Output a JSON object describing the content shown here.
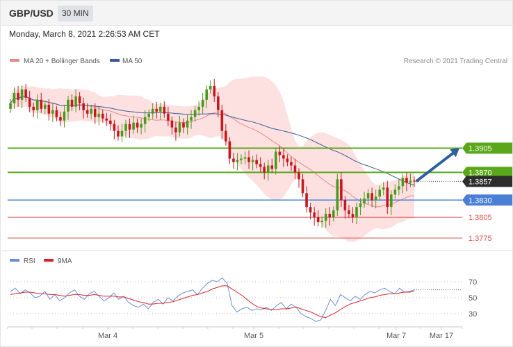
{
  "header": {
    "symbol": "GBP/USD",
    "timeframe": "30 MIN",
    "timestamp": "Monday, March 8, 2021 2:26:53 AM CET"
  },
  "colors": {
    "candle_up": "#4a9a1c",
    "candle_down": "#c8161d",
    "ma20": "#e88a8a",
    "bollinger_fill": "#fde0e0",
    "ma50": "#3c5a99",
    "resistance": "#5aa81a",
    "support": "#4a7fd6",
    "support_low": "#d9534f",
    "last_price": "#2d2d2d",
    "arrow": "#2f5f9e",
    "rsi": "#6a8fd8",
    "rsi_ma": "#d9232a"
  },
  "chart_data": [
    {
      "type": "candlestick",
      "title": "",
      "legend": [
        {
          "name": "MA 20 + Bollinger Bands",
          "color": "#e88a8a"
        },
        {
          "name": "MA 50",
          "color": "#3c5a99"
        }
      ],
      "legend_position": "top-left",
      "copyright": "Research © 2021 Trading Central",
      "x_ticks": [
        "Mar 4",
        "Mar 5",
        "Mar 7",
        "Mar 17"
      ],
      "ylim": [
        1.3765,
        1.402
      ],
      "price_levels": [
        {
          "label": "1.3905",
          "value": 1.3905,
          "kind": "resistance"
        },
        {
          "label": "1.3870",
          "value": 1.387,
          "kind": "resistance"
        },
        {
          "label": "1.3857",
          "value": 1.3857,
          "kind": "last"
        },
        {
          "label": "1.3830",
          "value": 1.383,
          "kind": "pivot"
        },
        {
          "label": "1.3805",
          "value": 1.3805,
          "kind": "support"
        },
        {
          "label": "1.3775",
          "value": 1.3775,
          "kind": "support"
        }
      ],
      "forecast_arrow": {
        "from": 1.3858,
        "to": 1.3905
      },
      "closes": [
        1.397,
        1.3985,
        1.3975,
        1.399,
        1.3978,
        1.3965,
        1.396,
        1.3975,
        1.3962,
        1.3968,
        1.3955,
        1.396,
        1.395,
        1.3945,
        1.3958,
        1.3975,
        1.3965,
        1.398,
        1.397,
        1.396,
        1.3955,
        1.3962,
        1.395,
        1.3955,
        1.3948,
        1.3945,
        1.394,
        1.393,
        1.3922,
        1.393,
        1.394,
        1.3932,
        1.3942,
        1.3935,
        1.394,
        1.395,
        1.3955,
        1.3962,
        1.3958,
        1.3965,
        1.3955,
        1.3945,
        1.3935,
        1.3928,
        1.3942,
        1.3935,
        1.3945,
        1.395,
        1.396,
        1.3965,
        1.3975,
        1.399,
        1.3995,
        1.398,
        1.396,
        1.393,
        1.3915,
        1.389,
        1.3885,
        1.3888,
        1.389,
        1.3892,
        1.3885,
        1.3888,
        1.3882,
        1.3878,
        1.387,
        1.388,
        1.3875,
        1.39,
        1.3895,
        1.389,
        1.3885,
        1.388,
        1.387,
        1.386,
        1.384,
        1.382,
        1.3812,
        1.3805,
        1.3798,
        1.38,
        1.381,
        1.3805,
        1.3815,
        1.386,
        1.383,
        1.3815,
        1.381,
        1.3805,
        1.382,
        1.3825,
        1.3832,
        1.384,
        1.383,
        1.3835,
        1.3845,
        1.3848,
        1.382,
        1.3838,
        1.3845,
        1.385,
        1.3862,
        1.3855,
        1.3858,
        1.3857
      ]
    },
    {
      "type": "line",
      "title": "",
      "legend": [
        {
          "name": "RSI",
          "color": "#6a8fd8"
        },
        {
          "name": "9MA",
          "color": "#d9232a"
        }
      ],
      "legend_position": "top-left",
      "y_ticks": [
        70,
        50,
        30
      ],
      "ylim": [
        15,
        85
      ],
      "x_ticks": [
        "Mar 4",
        "Mar 5",
        "Mar 7",
        "Mar 17"
      ],
      "series": [
        {
          "name": "RSI",
          "values": [
            58,
            62,
            55,
            60,
            56,
            50,
            52,
            58,
            48,
            54,
            46,
            50,
            56,
            60,
            52,
            48,
            55,
            58,
            52,
            46,
            50,
            56,
            48,
            52,
            44,
            40,
            38,
            42,
            36,
            44,
            48,
            42,
            50,
            46,
            52,
            56,
            58,
            60,
            54,
            62,
            68,
            72,
            70,
            75,
            68,
            40,
            32,
            36,
            38,
            34,
            36,
            35,
            38,
            34,
            40,
            44,
            36,
            42,
            38,
            30,
            26,
            24,
            20,
            22,
            34,
            48,
            40,
            54,
            50,
            46,
            52,
            48,
            54,
            58,
            56,
            60,
            62,
            58,
            55,
            62,
            57,
            58,
            60
          ]
        },
        {
          "name": "9MA",
          "values": [
            54,
            55,
            56,
            57,
            57,
            56,
            55,
            55,
            54,
            54,
            53,
            52,
            53,
            54,
            54,
            53,
            53,
            54,
            53,
            52,
            52,
            52,
            51,
            51,
            49,
            47,
            45,
            44,
            42,
            42,
            43,
            43,
            44,
            45,
            47,
            49,
            51,
            53,
            54,
            56,
            58,
            61,
            63,
            65,
            65,
            61,
            57,
            53,
            48,
            43,
            39,
            37,
            36,
            35,
            35,
            36,
            36,
            37,
            38,
            36,
            34,
            32,
            29,
            26,
            25,
            28,
            31,
            35,
            39,
            42,
            44,
            46,
            48,
            50,
            51,
            53,
            54,
            55,
            55,
            56,
            57,
            57,
            58
          ]
        }
      ]
    }
  ]
}
